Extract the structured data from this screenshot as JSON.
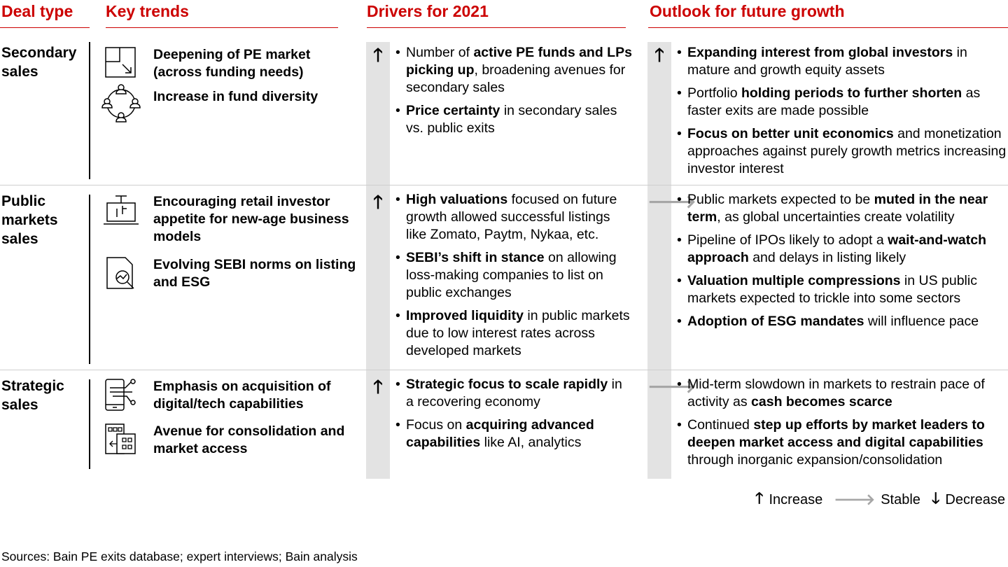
{
  "headers": {
    "deal_type": "Deal type",
    "key_trends": "Key trends",
    "drivers": "Drivers for 2021",
    "outlook": "Outlook for future growth"
  },
  "colors": {
    "accent": "#cc0000",
    "band": "#e3e3e3",
    "stable_arrow": "#a6a6a6"
  },
  "rows": [
    {
      "deal_type": "Secondary sales",
      "trends": [
        {
          "icon": "flow-chart-arrow-icon",
          "text": "Deepening of PE market (across funding needs)"
        },
        {
          "icon": "people-circle-icon",
          "text": "Increase in fund diversity"
        }
      ],
      "drivers_trend": "increase",
      "drivers": [
        [
          {
            "t": "Number of "
          },
          {
            "t": "active PE funds and LPs picking up",
            "b": true
          },
          {
            "t": ", broadening avenues for secondary sales"
          }
        ],
        [
          {
            "t": "Price certainty",
            "b": true
          },
          {
            "t": " in secondary sales vs. public exits"
          }
        ]
      ],
      "outlook_trend": "increase",
      "outlook": [
        [
          {
            "t": "Expanding interest from global investors",
            "b": true
          },
          {
            "t": " in mature and growth equity assets"
          }
        ],
        [
          {
            "t": "Portfolio "
          },
          {
            "t": "holding periods to further shorten",
            "b": true
          },
          {
            "t": " as faster exits are made possible"
          }
        ],
        [
          {
            "t": "Focus on better unit economics",
            "b": true
          },
          {
            "t": " and monetization approaches against purely growth metrics increasing investor interest"
          }
        ]
      ]
    },
    {
      "deal_type": "Public markets sales",
      "trends": [
        {
          "icon": "laptop-chart-icon",
          "text": "Encouraging retail investor appetite for new-age business models"
        },
        {
          "icon": "document-magnifier-icon",
          "text": "Evolving SEBI norms on listing and ESG"
        }
      ],
      "drivers_trend": "increase",
      "drivers": [
        [
          {
            "t": "High valuations",
            "b": true
          },
          {
            "t": " focused on future growth allowed successful listings like Zomato, Paytm, Nykaa, etc."
          }
        ],
        [
          {
            "t": "SEBI’s shift in stance",
            "b": true
          },
          {
            "t": " on allowing loss-making companies to list on public exchanges"
          }
        ],
        [
          {
            "t": "Improved liquidity",
            "b": true
          },
          {
            "t": " in public markets due to low interest rates across developed markets"
          }
        ]
      ],
      "outlook_trend": "stable",
      "outlook": [
        [
          {
            "t": "Public markets expected to be "
          },
          {
            "t": "muted in the near term",
            "b": true
          },
          {
            "t": ", as global uncertainties create volatility"
          }
        ],
        [
          {
            "t": "Pipeline of IPOs likely to adopt a "
          },
          {
            "t": "wait-and-watch approach",
            "b": true
          },
          {
            "t": " and delays in listing likely"
          }
        ],
        [
          {
            "t": "Valuation multiple compressions",
            "b": true
          },
          {
            "t": " in US public markets expected to trickle into some sectors"
          }
        ],
        [
          {
            "t": "Adoption of ESG mandates",
            "b": true
          },
          {
            "t": " will influence pace"
          }
        ]
      ]
    },
    {
      "deal_type": "Strategic sales",
      "trends": [
        {
          "icon": "mobile-circuit-icon",
          "text": "Emphasis on acquisition of digital/tech capabilities"
        },
        {
          "icon": "buildings-merge-icon",
          "text": "Avenue for consolidation and market access"
        }
      ],
      "drivers_trend": "increase",
      "drivers": [
        [
          {
            "t": "Strategic focus to scale rapidly",
            "b": true
          },
          {
            "t": " in a recovering economy"
          }
        ],
        [
          {
            "t": "Focus on "
          },
          {
            "t": "acquiring advanced capabilities",
            "b": true
          },
          {
            "t": " like AI, analytics"
          }
        ]
      ],
      "outlook_trend": "stable",
      "outlook": [
        [
          {
            "t": "Mid-term slowdown in markets to restrain pace of activity as "
          },
          {
            "t": "cash becomes scarce",
            "b": true
          }
        ],
        [
          {
            "t": "Continued "
          },
          {
            "t": "step up efforts by market leaders to deepen market access and digital capabilities",
            "b": true
          },
          {
            "t": " through inorganic expansion/consolidation"
          }
        ]
      ]
    }
  ],
  "legend": {
    "increase": "Increase",
    "stable": "Stable",
    "decrease": "Decrease"
  },
  "source": "Sources: Bain PE exits database; expert interviews; Bain analysis"
}
